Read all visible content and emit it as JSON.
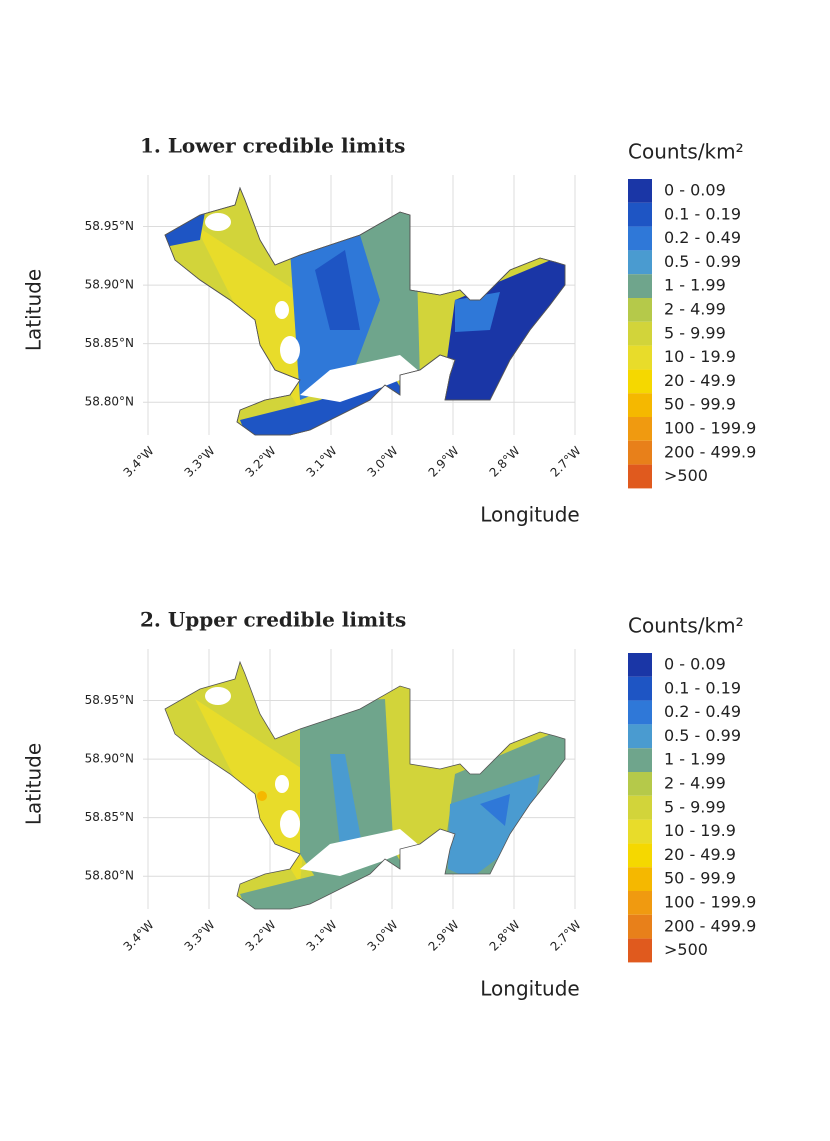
{
  "chart_data": [
    {
      "type": "map",
      "title": "1. Lower credible limits",
      "xlabel": "Longitude",
      "ylabel": "Latitude",
      "xlim": [
        -3.4,
        -2.7
      ],
      "ylim": [
        58.772,
        58.994
      ],
      "xticks": [
        {
          "value": -3.4,
          "label": "3.4°W"
        },
        {
          "value": -3.3,
          "label": "3.3°W"
        },
        {
          "value": -3.2,
          "label": "3.2°W"
        },
        {
          "value": -3.1,
          "label": "3.1°W"
        },
        {
          "value": -3.0,
          "label": "3.0°W"
        },
        {
          "value": -2.9,
          "label": "2.9°W"
        },
        {
          "value": -2.8,
          "label": "2.8°W"
        },
        {
          "value": -2.7,
          "label": "2.7°W"
        }
      ],
      "yticks": [
        {
          "value": 58.8,
          "label": "58.80°N"
        },
        {
          "value": 58.85,
          "label": "58.85°N"
        },
        {
          "value": 58.9,
          "label": "58.90°N"
        },
        {
          "value": 58.95,
          "label": "58.95°N"
        }
      ],
      "grid": true,
      "legend_title": "Counts/km²",
      "legend": [
        {
          "label": "0 - 0.09",
          "color": "#1a36a6"
        },
        {
          "label": "0.1 - 0.19",
          "color": "#1e55c4"
        },
        {
          "label": "0.2 - 0.49",
          "color": "#2f78d8"
        },
        {
          "label": "0.5 - 0.99",
          "color": "#4a9bd0"
        },
        {
          "label": "1 - 1.99",
          "color": "#6fa58c"
        },
        {
          "label": "2 - 4.99",
          "color": "#b5c94a"
        },
        {
          "label": "5 - 9.99",
          "color": "#d2d43a"
        },
        {
          "label": "10 - 19.9",
          "color": "#e8dc2a"
        },
        {
          "label": "20 - 49.9",
          "color": "#f5d800"
        },
        {
          "label": "50 - 99.9",
          "color": "#f5b800"
        },
        {
          "label": "100 - 199.9",
          "color": "#f09a10"
        },
        {
          "label": "200 - 499.9",
          "color": "#e8801a"
        },
        {
          "label": ">500",
          "color": "#e05a1e"
        }
      ]
    },
    {
      "type": "map",
      "title": "2. Upper credible limits",
      "xlabel": "Longitude",
      "ylabel": "Latitude",
      "xlim": [
        -3.4,
        -2.7
      ],
      "ylim": [
        58.772,
        58.994
      ],
      "xticks": [
        {
          "value": -3.4,
          "label": "3.4°W"
        },
        {
          "value": -3.3,
          "label": "3.3°W"
        },
        {
          "value": -3.2,
          "label": "3.2°W"
        },
        {
          "value": -3.1,
          "label": "3.1°W"
        },
        {
          "value": -3.0,
          "label": "3.0°W"
        },
        {
          "value": -2.9,
          "label": "2.9°W"
        },
        {
          "value": -2.8,
          "label": "2.8°W"
        },
        {
          "value": -2.7,
          "label": "2.7°W"
        }
      ],
      "yticks": [
        {
          "value": 58.8,
          "label": "58.80°N"
        },
        {
          "value": 58.85,
          "label": "58.85°N"
        },
        {
          "value": 58.9,
          "label": "58.90°N"
        },
        {
          "value": 58.95,
          "label": "58.95°N"
        }
      ],
      "grid": true,
      "legend_title": "Counts/km²",
      "legend": [
        {
          "label": "0 - 0.09",
          "color": "#1a36a6"
        },
        {
          "label": "0.1 - 0.19",
          "color": "#1e55c4"
        },
        {
          "label": "0.2 - 0.49",
          "color": "#2f78d8"
        },
        {
          "label": "0.5 - 0.99",
          "color": "#4a9bd0"
        },
        {
          "label": "1 - 1.99",
          "color": "#6fa58c"
        },
        {
          "label": "2 - 4.99",
          "color": "#b5c94a"
        },
        {
          "label": "5 - 9.99",
          "color": "#d2d43a"
        },
        {
          "label": "10 - 19.9",
          "color": "#e8dc2a"
        },
        {
          "label": "20 - 49.9",
          "color": "#f5d800"
        },
        {
          "label": "50 - 99.9",
          "color": "#f5b800"
        },
        {
          "label": "100 - 199.9",
          "color": "#f09a10"
        },
        {
          "label": "200 - 499.9",
          "color": "#e8801a"
        },
        {
          "label": ">500",
          "color": "#e05a1e"
        }
      ]
    }
  ]
}
